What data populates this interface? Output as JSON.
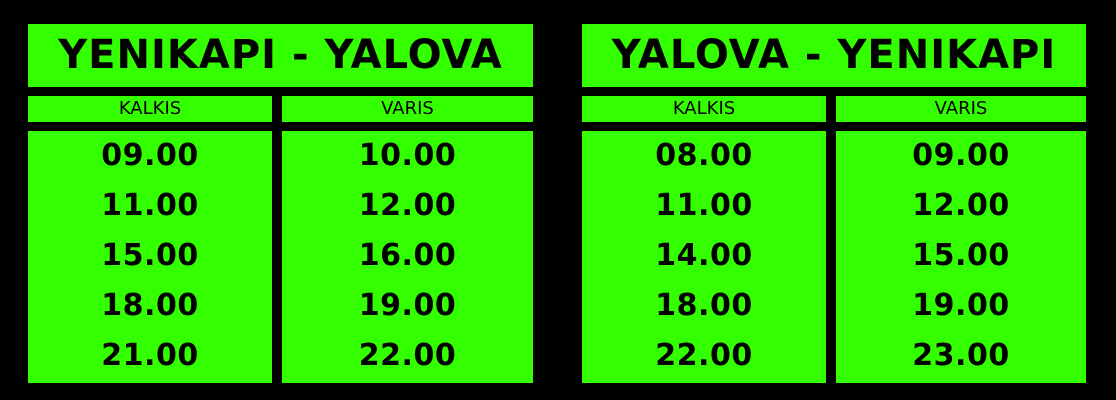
{
  "schedules": [
    {
      "title": "YENIKAPI - YALOVA",
      "departure_label": "KALKIS",
      "arrival_label": "VARIS",
      "departures": [
        "09.00",
        "11.00",
        "15.00",
        "18.00",
        "21.00"
      ],
      "arrivals": [
        "10.00",
        "12.00",
        "16.00",
        "19.00",
        "22.00"
      ]
    },
    {
      "title": "YALOVA - YENIKAPI",
      "departure_label": "KALKIS",
      "arrival_label": "VARIS",
      "departures": [
        "08.00",
        "11.00",
        "14.00",
        "18.00",
        "22.00"
      ],
      "arrivals": [
        "09.00",
        "12.00",
        "15.00",
        "19.00",
        "23.00"
      ]
    }
  ],
  "colors": {
    "background": "#000000",
    "panel": "#33ff00",
    "text": "#000000"
  }
}
